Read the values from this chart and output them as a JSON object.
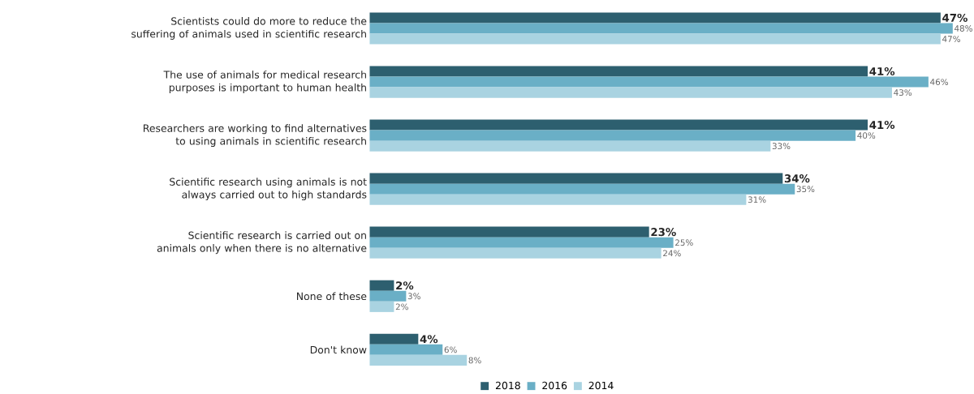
{
  "chart_data": {
    "type": "bar",
    "orientation": "horizontal",
    "legend": "bottom",
    "categories": [
      "Scientists could do more to reduce the suffering of animals used in scientific research",
      "The use of animals for medical research purposes is important to human health",
      "Researchers are working to find alternatives to using animals in scientific research",
      "Scientific research using animals is not always carried out to high standards",
      "Scientific research is carried out on animals only when there is no alternative",
      "None of these",
      "Don't know"
    ],
    "series": [
      {
        "name": "2018",
        "color": "#2d5f6f",
        "values": [
          47,
          41,
          41,
          34,
          23,
          2,
          4
        ],
        "value_labels": [
          "47%",
          "41%",
          "41%",
          "34%",
          "23%",
          "2%",
          "4%"
        ]
      },
      {
        "name": "2016",
        "color": "#6aafc6",
        "values": [
          48,
          46,
          40,
          35,
          25,
          3,
          6
        ],
        "value_labels": [
          "48%",
          "46%",
          "40%",
          "35%",
          "25%",
          "3%",
          "6%"
        ]
      },
      {
        "name": "2014",
        "color": "#a9d3e1",
        "values": [
          47,
          43,
          33,
          31,
          24,
          2,
          8
        ],
        "value_labels": [
          "47%",
          "43%",
          "33%",
          "31%",
          "24%",
          "2%",
          "8%"
        ]
      }
    ]
  }
}
